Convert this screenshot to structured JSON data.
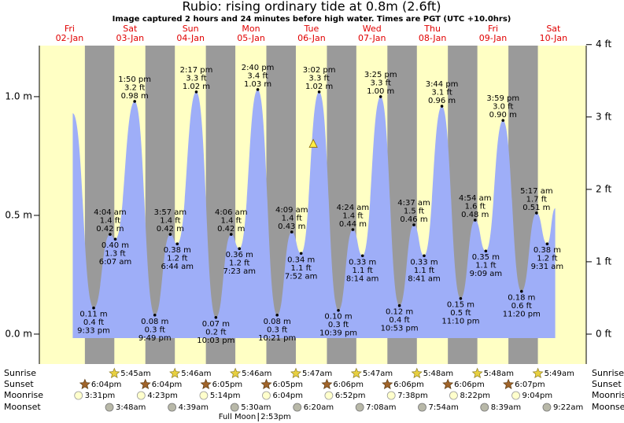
{
  "chart_data": {
    "type": "tide",
    "title": "Rubio: rising  ordinary tide at 0.8m (2.6ft)",
    "subtitle": "Image captured 2 hours and 24 minutes before high water. Times are PGT (UTC +10.0hrs)",
    "xlim": [
      0,
      217
    ],
    "xticks": [
      {
        "value": 12,
        "label": "Fri",
        "date": "02-Jan"
      },
      {
        "value": 36,
        "label": "Sat",
        "date": "03-Jan"
      },
      {
        "value": 60,
        "label": "Sun",
        "date": "04-Jan"
      },
      {
        "value": 84,
        "label": "Mon",
        "date": "05-Jan"
      },
      {
        "value": 108,
        "label": "Tue",
        "date": "06-Jan"
      },
      {
        "value": 132,
        "label": "Wed",
        "date": "07-Jan"
      },
      {
        "value": 156,
        "label": "Thu",
        "date": "08-Jan"
      },
      {
        "value": 180,
        "label": "Fri",
        "date": "09-Jan"
      },
      {
        "value": 204,
        "label": "Sat",
        "date": "10-Jan"
      }
    ],
    "ylim": [
      -0.126,
      1.215
    ],
    "yticks": [
      {
        "value": 0,
        "label": "0.0 m"
      },
      {
        "value": 0.5,
        "label": "0.5 m"
      },
      {
        "value": 1.0,
        "label": "1.0 m"
      }
    ],
    "y2lim": [
      -0.413,
      3.986
    ],
    "y2ticks": [
      {
        "value": 0,
        "label": "0 ft"
      },
      {
        "value": 1,
        "label": "1 ft"
      },
      {
        "value": 2,
        "label": "2 ft"
      },
      {
        "value": 3,
        "label": "3 ft"
      },
      {
        "value": 4,
        "label": "4 ft"
      }
    ],
    "color": "#9eaef8",
    "day_color": "#ffffc4",
    "night_color": "#9a9a9a",
    "day_label_color": "#e00000",
    "extremes": {
      "x": [
        13.25,
        21.55,
        28.07,
        30.12,
        37.83,
        45.82,
        51.95,
        54.73,
        62.28,
        70.05,
        76.1,
        79.38,
        86.67,
        94.35,
        100.15,
        103.87,
        111.03,
        118.65,
        124.4,
        128.23,
        135.42,
        142.88,
        148.62,
        152.68,
        159.73,
        167.17,
        172.9,
        177.15,
        183.98,
        191.33,
        197.28,
        201.52,
        204.7
      ],
      "values": [
        0.93,
        0.11,
        0.42,
        0.4,
        0.98,
        0.08,
        0.42,
        0.38,
        1.02,
        0.07,
        0.42,
        0.36,
        1.03,
        0.08,
        0.43,
        0.34,
        1.02,
        0.1,
        0.44,
        0.33,
        1.0,
        0.12,
        0.46,
        0.33,
        0.96,
        0.15,
        0.48,
        0.35,
        0.9,
        0.18,
        0.51,
        0.38,
        0.53
      ],
      "value_labels": [
        null,
        "0.11 m",
        "0.42 m",
        "0.40 m",
        "0.98 m",
        "0.08 m",
        "0.42 m",
        "0.38 m",
        "1.02 m",
        "0.07 m",
        "0.42 m",
        "0.36 m",
        "1.03 m",
        "0.08 m",
        "0.43 m",
        "0.34 m",
        "1.02 m",
        "0.10 m",
        "0.44 m",
        "0.33 m",
        "1.00 m",
        "0.12 m",
        "0.46 m",
        "0.33 m",
        "0.96 m",
        "0.15 m",
        "0.48 m",
        "0.35 m",
        "0.90 m",
        "0.18 m",
        "0.51 m",
        "0.38 m",
        null
      ],
      "feet_labels": [
        null,
        "0.4 ft",
        "1.4 ft",
        "1.3 ft",
        "3.2 ft",
        "0.3 ft",
        "1.4 ft",
        "1.2 ft",
        "3.3 ft",
        "0.2 ft",
        "1.4 ft",
        "1.2 ft",
        "3.4 ft",
        "0.3 ft",
        "1.4 ft",
        "1.1 ft",
        "3.3 ft",
        "0.3 ft",
        "1.4 ft",
        "1.1 ft",
        "3.3 ft",
        "0.4 ft",
        "1.5 ft",
        "1.1 ft",
        "3.1 ft",
        "0.5 ft",
        "1.6 ft",
        "1.1 ft",
        "3.0 ft",
        "0.6 ft",
        "1.7 ft",
        "1.2 ft",
        null
      ],
      "time_labels": [
        null,
        "9:33 pm",
        "4:04 am",
        "6:07 am",
        "1:50 pm",
        "9:49 pm",
        "3:57 am",
        "6:44 am",
        "2:17 pm",
        "10:03 pm",
        "4:06 am",
        "7:23 am",
        "2:40 pm",
        "10:21 pm",
        "4:09 am",
        "7:52 am",
        "3:02 pm",
        "10:39 pm",
        "4:24 am",
        "8:14 am",
        "3:25 pm",
        "10:53 pm",
        "4:37 am",
        "8:41 am",
        "3:44 pm",
        "11:10 pm",
        "4:54 am",
        "9:09 am",
        "3:59 pm",
        "11:20 pm",
        "5:17 am",
        "9:31 am",
        null
      ]
    },
    "current": {
      "x": 108.7,
      "value": 0.8
    },
    "sunrise": {
      "label": "Sunrise",
      "x": [
        29.75,
        53.77,
        77.77,
        101.78,
        125.78,
        149.8,
        173.8,
        197.82
      ],
      "times": [
        "5:45am",
        "5:46am",
        "5:46am",
        "5:47am",
        "5:47am",
        "5:48am",
        "5:48am",
        "5:49am"
      ]
    },
    "sunset": {
      "label": "Sunset",
      "x": [
        18.07,
        42.07,
        66.08,
        90.08,
        114.1,
        138.1,
        162.1,
        186.12
      ],
      "times": [
        "6:04pm",
        "6:04pm",
        "6:05pm",
        "6:05pm",
        "6:06pm",
        "6:06pm",
        "6:06pm",
        "6:07pm"
      ]
    },
    "moonrise": {
      "label": "Moonrise",
      "x": [
        15.52,
        40.38,
        65.23,
        90.07,
        114.87,
        139.63,
        164.37,
        189.07
      ],
      "times": [
        "3:31pm",
        "4:23pm",
        "5:14pm",
        "6:04pm",
        "6:52pm",
        "7:38pm",
        "8:22pm",
        "9:04pm"
      ]
    },
    "moonset": {
      "label": "Moonset",
      "x": [
        27.8,
        52.65,
        77.5,
        102.33,
        127.13,
        151.9,
        176.65,
        201.37
      ],
      "times": [
        "3:48am",
        "4:39am",
        "5:30am",
        "6:20am",
        "7:08am",
        "7:54am",
        "8:39am",
        "9:22am"
      ]
    },
    "moon_phase": {
      "label": "Full Moon",
      "time": "2:53pm",
      "x": 86.88
    }
  }
}
